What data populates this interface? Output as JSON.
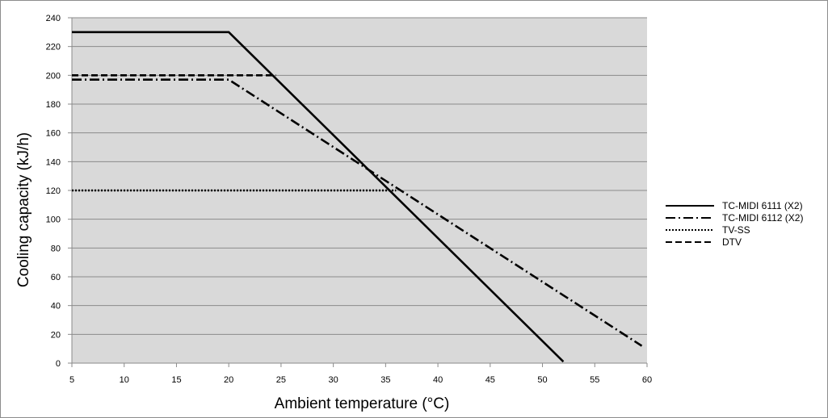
{
  "chart_data": {
    "type": "line",
    "title": "",
    "xlabel": "Ambient temperature (°C)",
    "ylabel": "Cooling capacity (kJ/h)",
    "xlim": [
      5,
      60
    ],
    "ylim": [
      0,
      240
    ],
    "x_ticks": [
      5,
      10,
      15,
      20,
      25,
      30,
      35,
      40,
      45,
      50,
      55,
      60
    ],
    "y_ticks": [
      0,
      20,
      40,
      60,
      80,
      100,
      120,
      140,
      160,
      180,
      200,
      220,
      240
    ],
    "grid": "horizontal",
    "background": "#d9d9d9",
    "legend_position": "right",
    "series": [
      {
        "name": "TC-MIDI 6111 (X2)",
        "style": "solid",
        "color": "#000000",
        "points": [
          [
            5,
            230
          ],
          [
            20,
            230
          ],
          [
            52,
            1
          ]
        ]
      },
      {
        "name": "TC-MIDI 6112 (X2)",
        "style": "dashdot",
        "color": "#000000",
        "points": [
          [
            5,
            197
          ],
          [
            20,
            197
          ],
          [
            59.5,
            12
          ]
        ]
      },
      {
        "name": "TV-SS",
        "style": "dotted",
        "color": "#000000",
        "points": [
          [
            5,
            120
          ],
          [
            36,
            120
          ]
        ]
      },
      {
        "name": "DTV",
        "style": "dashed",
        "color": "#000000",
        "points": [
          [
            5,
            200
          ],
          [
            24.5,
            200
          ]
        ]
      }
    ]
  }
}
